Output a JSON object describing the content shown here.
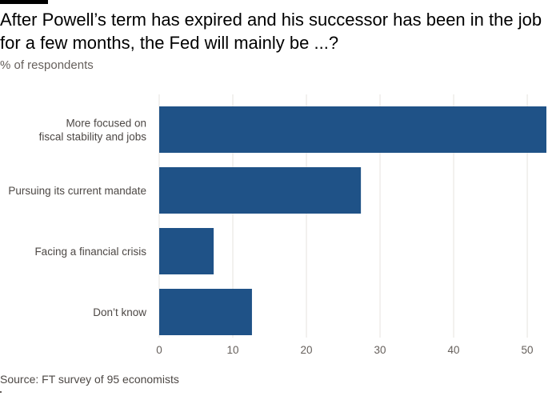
{
  "chart_data": {
    "type": "bar",
    "orientation": "horizontal",
    "title": "After Powell’s term has expired and his successor has been in the job for a few months, the Fed will mainly be ...?",
    "subtitle": "% of respondents",
    "categories": [
      [
        "More focused on",
        "fiscal stability and jobs"
      ],
      [
        "Pursuing its current mandate"
      ],
      [
        "Facing a financial crisis"
      ],
      [
        "Don’t know"
      ]
    ],
    "values": [
      52.6,
      27.4,
      7.4,
      12.6
    ],
    "xlim": [
      0,
      52.6
    ],
    "xticks": [
      "0",
      "10",
      "20",
      "30",
      "40",
      "50"
    ],
    "bar_color": "#1f5287",
    "grid": true,
    "source": "Source: FT survey of 95 economists"
  }
}
